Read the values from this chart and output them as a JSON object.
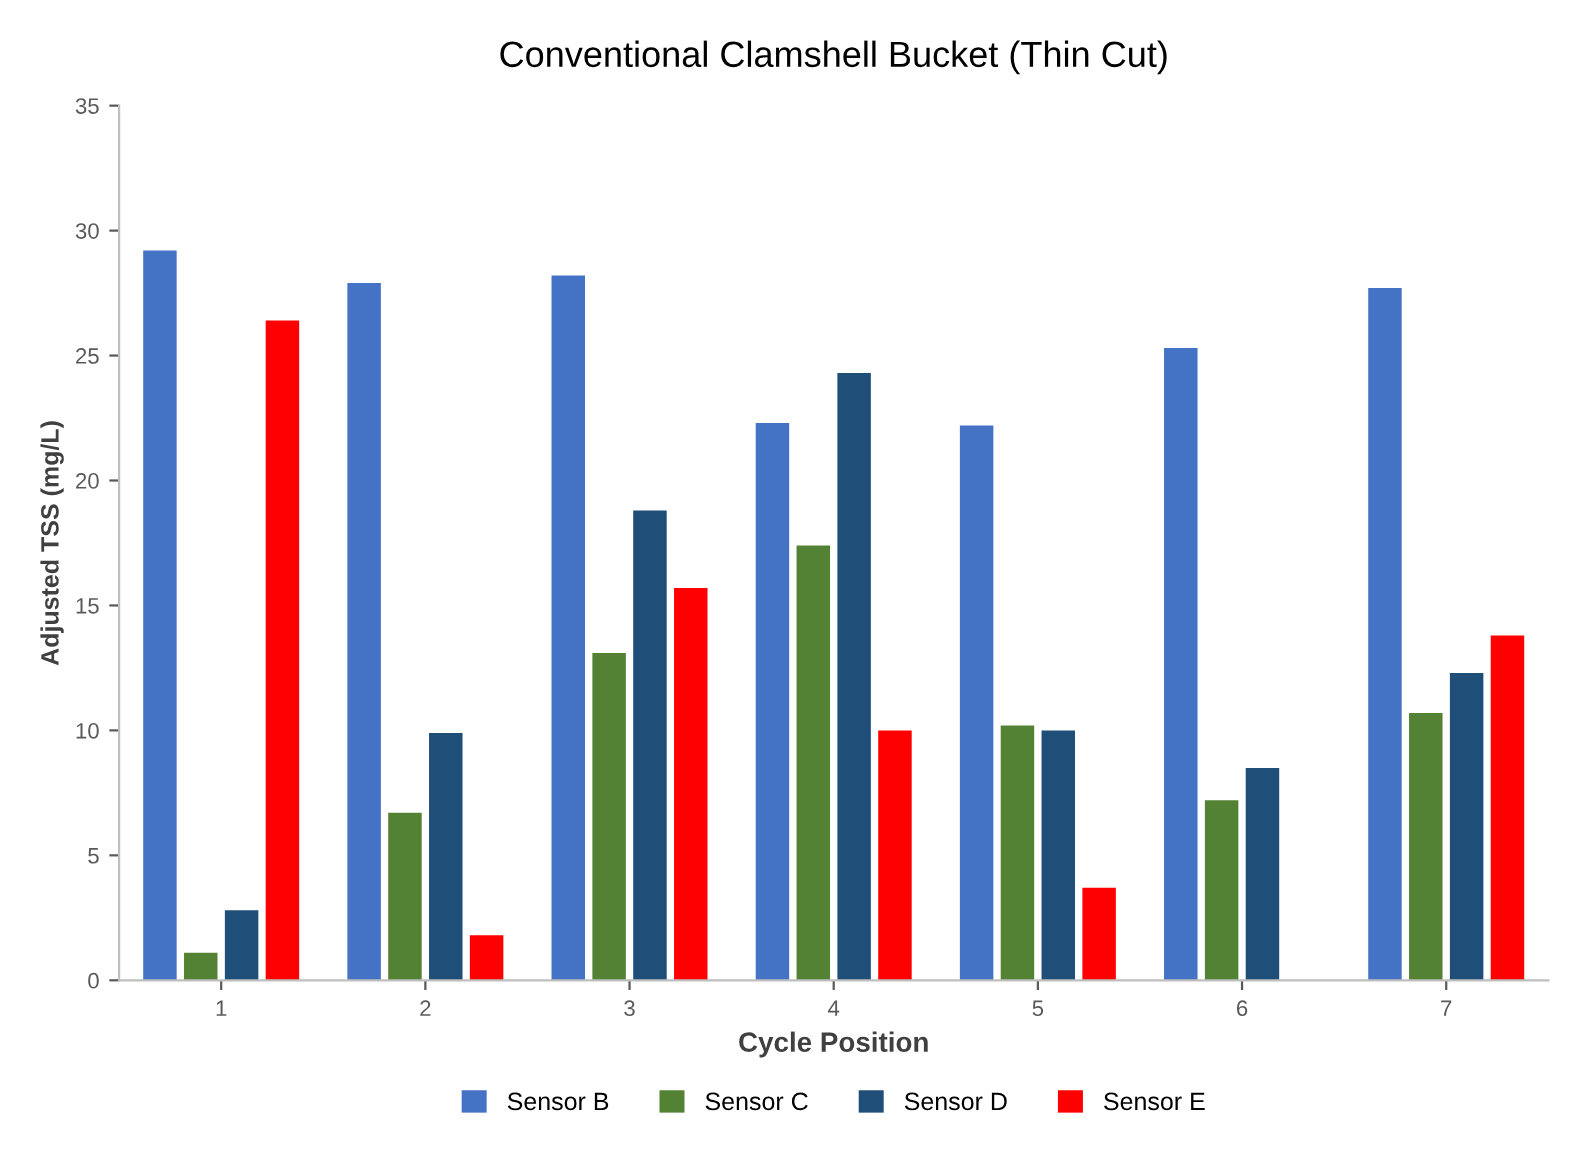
{
  "chart_data": {
    "type": "bar",
    "title": "Conventional Clamshell Bucket (Thin Cut)",
    "xlabel": "Cycle Position",
    "ylabel": "Adjusted TSS (mg/L)",
    "categories": [
      "1",
      "2",
      "3",
      "4",
      "5",
      "6",
      "7"
    ],
    "series": [
      {
        "name": "Sensor B",
        "color": "#4472c4",
        "values": [
          29.2,
          27.9,
          28.2,
          22.3,
          22.2,
          25.3,
          27.7
        ]
      },
      {
        "name": "Sensor C",
        "color": "#548235",
        "values": [
          1.1,
          6.7,
          13.1,
          17.4,
          10.2,
          7.2,
          10.7
        ]
      },
      {
        "name": "Sensor D",
        "color": "#1f4e79",
        "values": [
          2.8,
          9.9,
          18.8,
          24.3,
          10.0,
          8.5,
          12.3
        ]
      },
      {
        "name": "Sensor E",
        "color": "#ff0000",
        "values": [
          26.4,
          1.8,
          15.7,
          10.0,
          3.7,
          null,
          13.8
        ]
      }
    ],
    "ylim": [
      0,
      35
    ],
    "yticks": [
      0,
      5,
      10,
      15,
      20,
      25,
      30,
      35
    ],
    "grid": false,
    "legend": "bottom"
  }
}
